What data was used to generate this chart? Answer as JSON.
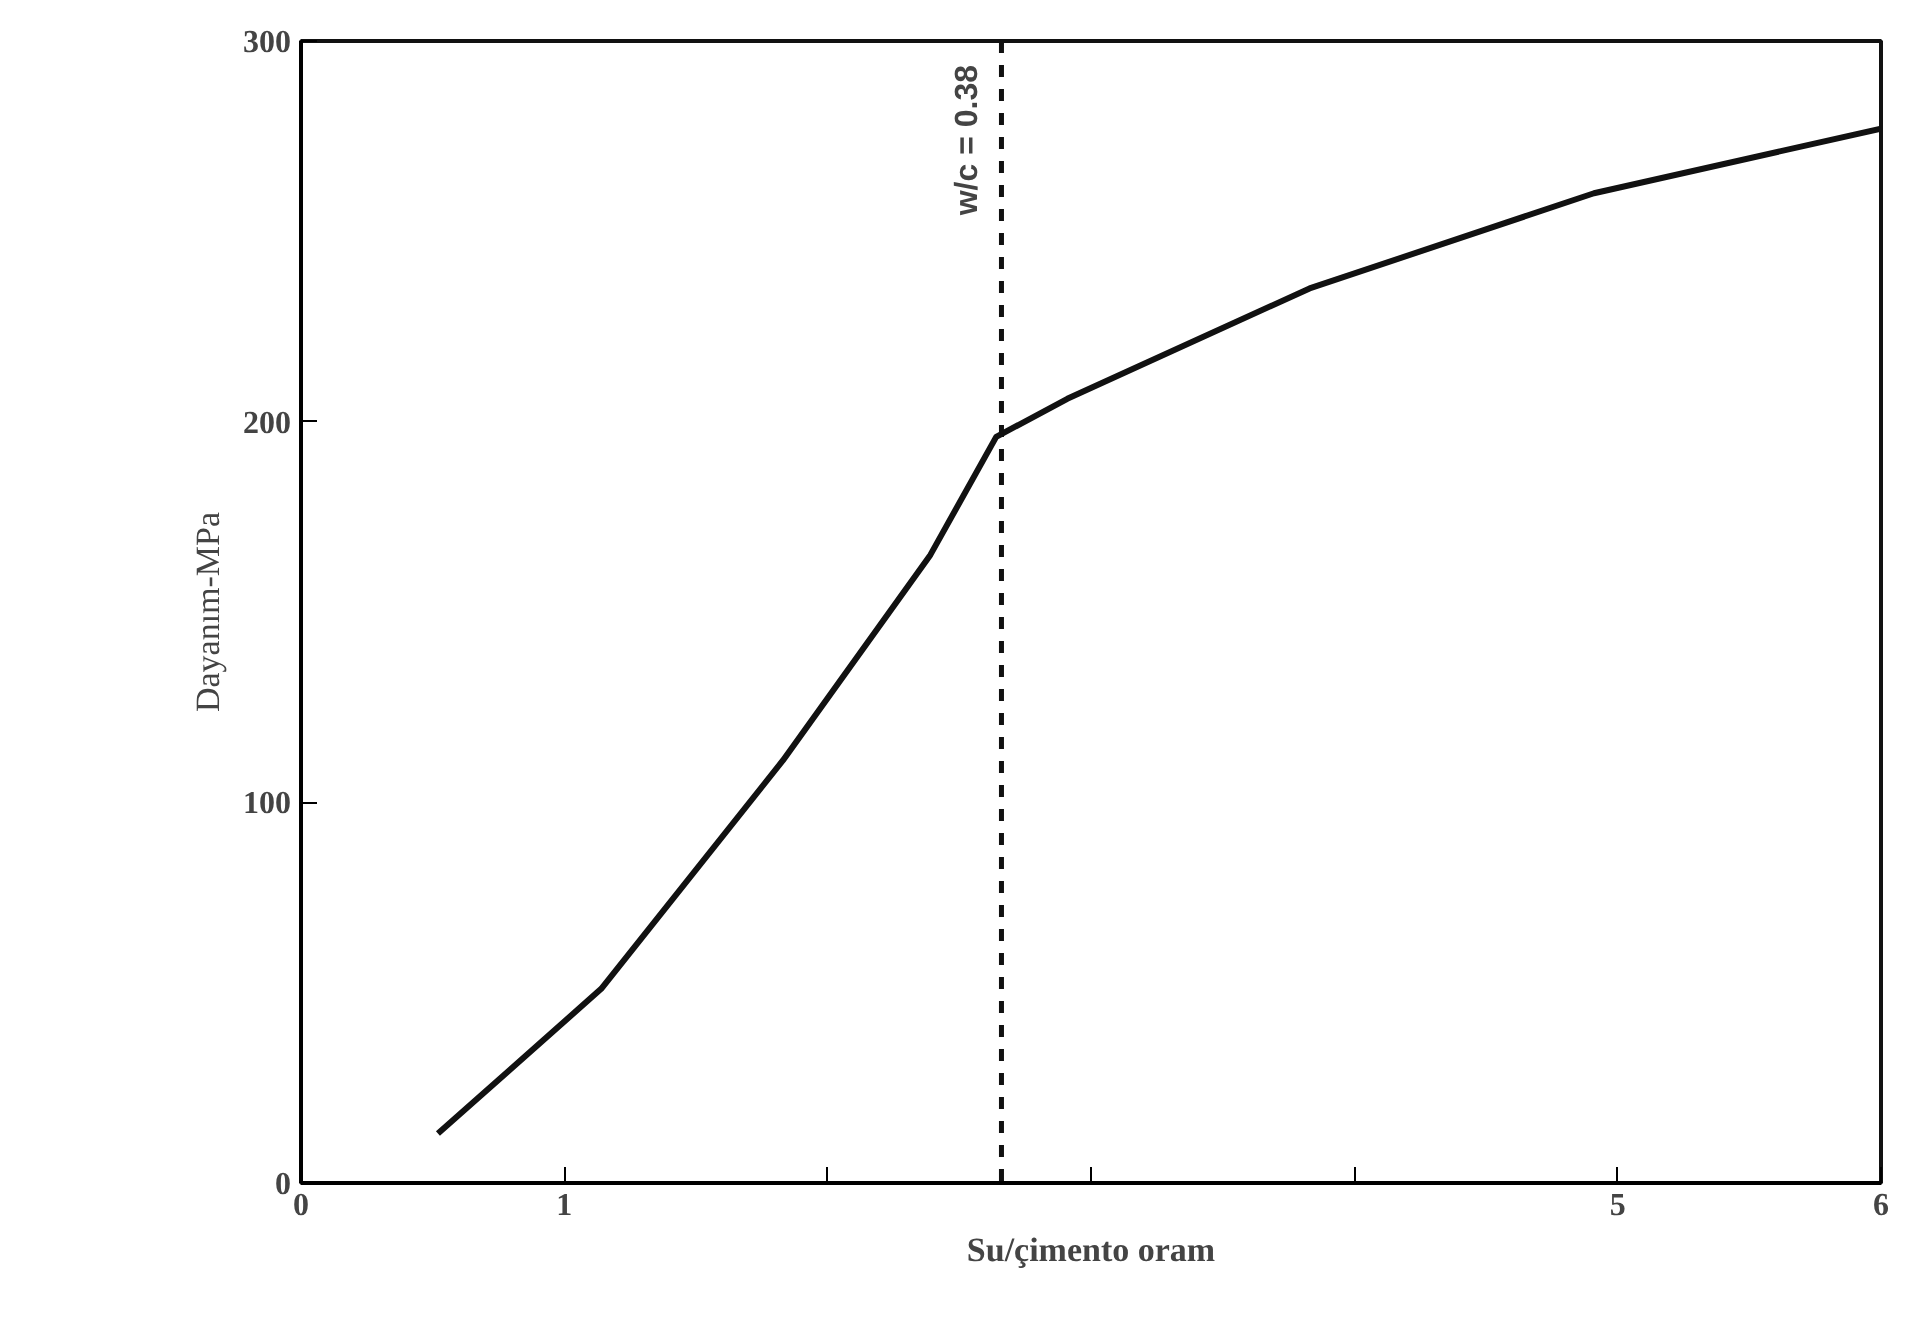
{
  "chart_data": {
    "type": "line",
    "xlabel": "Su/çimento oram",
    "ylabel": "Dayanım-MPa",
    "x": [
      0.52,
      1.14,
      1.83,
      2.39,
      2.64,
      2.91,
      3.83,
      4.91,
      6.0
    ],
    "series": [
      {
        "color": "#111111",
        "values": [
          13,
          51,
          111,
          165,
          196,
          206,
          235,
          260,
          277
        ]
      }
    ],
    "xlim": [
      0,
      6
    ],
    "ylim": [
      0,
      300
    ],
    "xticks": [
      0,
      1,
      {
        "value": 2,
        "label": null
      },
      {
        "value": 3,
        "label": null
      },
      {
        "value": 4,
        "label": null
      },
      5,
      6
    ],
    "yticks": [
      0,
      100,
      200,
      300
    ],
    "ref_lines": [
      {
        "axis": "x",
        "value": 2.66,
        "line_style": "dashed",
        "color": "#111111"
      }
    ],
    "annotations": [
      "w/c = 0.38"
    ],
    "line_style": "solid"
  }
}
